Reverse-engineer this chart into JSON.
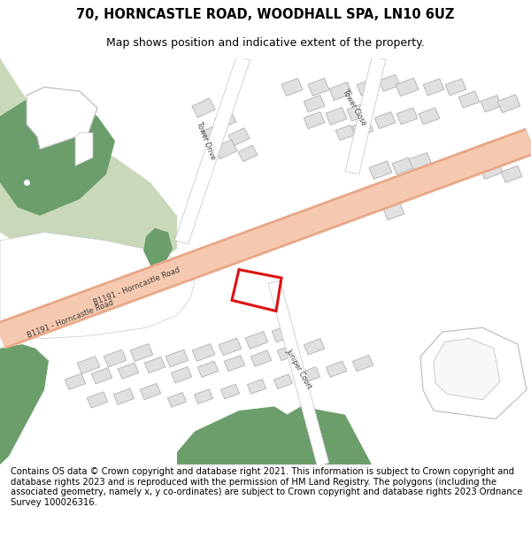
{
  "title_line1": "70, HORNCASTLE ROAD, WOODHALL SPA, LN10 6UZ",
  "title_line2": "Map shows position and indicative extent of the property.",
  "footer_text": "Contains OS data © Crown copyright and database right 2021. This information is subject to Crown copyright and database rights 2023 and is reproduced with the permission of HM Land Registry. The polygons (including the associated geometry, namely x, y co-ordinates) are subject to Crown copyright and database rights 2023 Ordnance Survey 100026316.",
  "bg_color": "#ffffff",
  "map_bg": "#f8f8f8",
  "road_fill": "#f5c9b0",
  "road_edge": "#e8a888",
  "green_light": "#c8d8b8",
  "green_dark": "#6b9e6b",
  "building_fill": "#e0e0e0",
  "building_edge": "#b8b8b8",
  "plot_color": "#dd1111",
  "road_label1": "B1191 - Horncastle Road",
  "road_label2": "B1191 - Horncastle Road",
  "road_label3": "Tower Drive",
  "road_label4": "Tower Close",
  "road_label5": "Juniper Court",
  "title_fontsize": 10.5,
  "subtitle_fontsize": 9,
  "footer_fontsize": 7.2
}
